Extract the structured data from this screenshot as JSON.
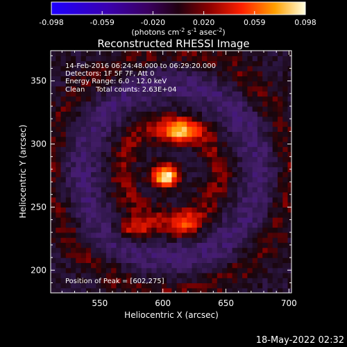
{
  "chart_data": {
    "type": "heatmap",
    "title": "Reconstructed RHESSI Image",
    "xlabel": "Heliocentric X (arcsec)",
    "ylabel": "Heliocentric Y (arcsec)",
    "xlim": [
      511,
      702
    ],
    "ylim": [
      182,
      374
    ],
    "x_ticks": [
      550,
      600,
      650,
      700
    ],
    "y_ticks": [
      200,
      250,
      300,
      350
    ],
    "colorbar": {
      "ticks": [
        "-0.098",
        "-0.059",
        "-0.020",
        "0.020",
        "0.059",
        "0.098"
      ],
      "min": -0.098,
      "max": 0.098,
      "unit_main": "(photons cm",
      "unit_exp1": "-2",
      "unit_s": " s",
      "unit_exp2": "-1",
      "unit_asec": " asec",
      "unit_exp3": "-2",
      "unit_close": ")"
    },
    "annotations": {
      "time_range": "14-Feb-2016 06:24:48.000 to 06:29:20.000",
      "detectors": "Detectors: 1F 5F 7F, Att 0",
      "energy_range": "Energy Range: 6.0 - 12.0 keV",
      "clean": "Clean     Total counts: 2.63E+04",
      "peak": "Position of Peak = [602,275]"
    },
    "sources": [
      {
        "x": 602,
        "y": 275,
        "value": 0.098,
        "sx": 7,
        "sy": 6
      },
      {
        "x": 613,
        "y": 310,
        "value": 0.07,
        "sx": 10,
        "sy": 6
      },
      {
        "x": 578,
        "y": 233,
        "value": 0.045,
        "sx": 10,
        "sy": 6
      },
      {
        "x": 618,
        "y": 236,
        "value": 0.04,
        "sx": 9,
        "sy": 6
      }
    ],
    "colormap": "blue-purple-red-yellow-white"
  },
  "footer": {
    "timestamp": "18-May-2022 02:32"
  }
}
